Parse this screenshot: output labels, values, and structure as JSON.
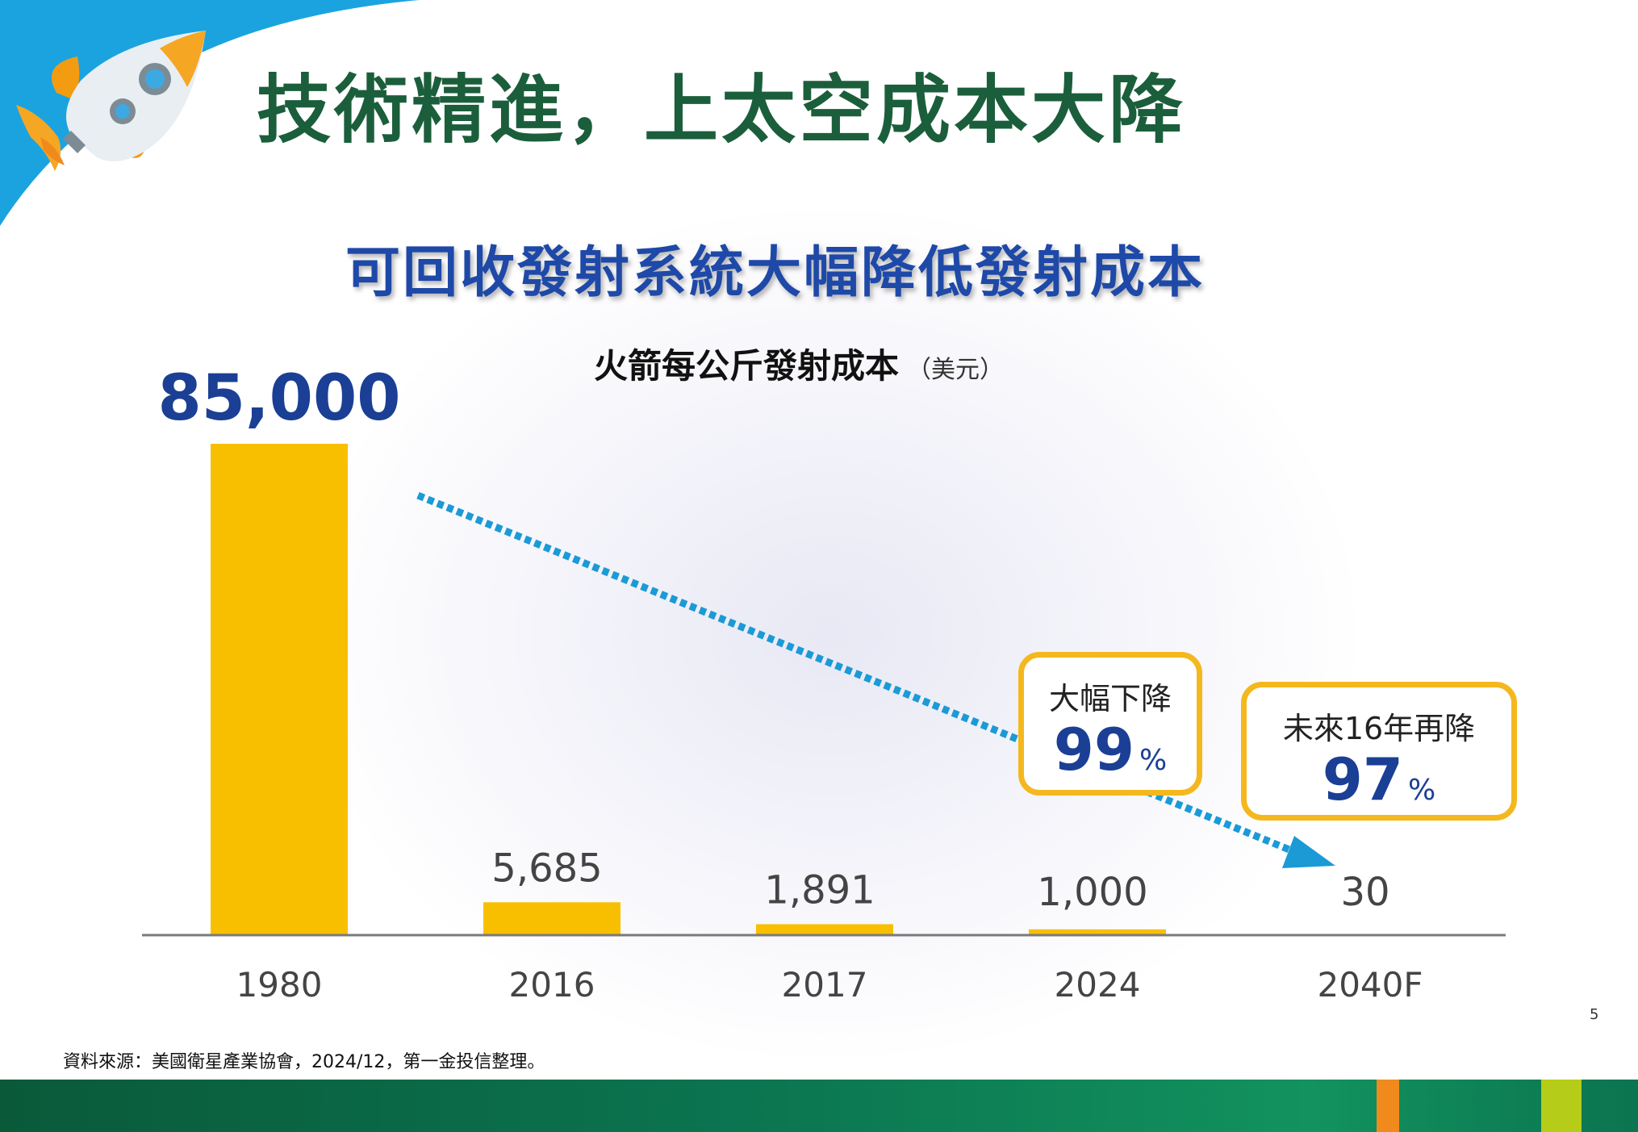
{
  "slide": {
    "title": "技術精進，上太空成本大降",
    "subtitle": "可回收發射系統大幅降低發射成本",
    "page_number": "5",
    "source_note": "資料來源：美國衛星產業協會，2024/12，第一金投信整理。"
  },
  "chart_data": {
    "type": "bar",
    "title": "火箭每公斤發射成本",
    "unit_label": "（美元）",
    "categories": [
      "1980",
      "2016",
      "2017",
      "2024",
      "2040F"
    ],
    "values": [
      85000,
      5685,
      1891,
      1000,
      30
    ],
    "value_labels": [
      "85,000",
      "5,685",
      "1,891",
      "1,000",
      "30"
    ],
    "ylim": [
      0,
      85000
    ],
    "grid": false,
    "bar_color": "#f8bf00",
    "trend_arrow_color": "#1b9ad6"
  },
  "callouts": [
    {
      "label": "大幅下降",
      "value": "99",
      "pct": "%"
    },
    {
      "label": "未來16年再降",
      "value": "97",
      "pct": "%"
    }
  ],
  "colors": {
    "title_green": "#1b5e3b",
    "subtitle_blue": "#1e49a8",
    "highlight_blue": "#1a3f95",
    "callout_border": "#f4b81e",
    "corner_blue": "#1ba3e0",
    "footer_green": "#0b7450"
  },
  "icons": {
    "rocket": "rocket-icon"
  }
}
